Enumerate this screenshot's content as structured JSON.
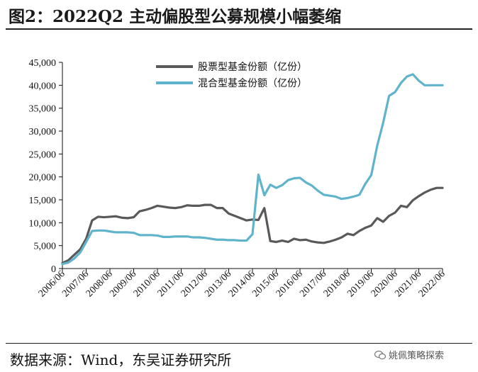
{
  "header": {
    "title": "图2：2022Q2 主动偏股型公募规模小幅萎缩"
  },
  "footer": {
    "source": "数据来源：Wind，东吴证券研究所",
    "watermark": "姚佩策略探索"
  },
  "chart_data": {
    "type": "line",
    "title": "图2：2022Q2 主动偏股型公募规模小幅萎缩",
    "xlabel": "",
    "ylabel": "",
    "ylim": [
      0,
      45000
    ],
    "yticks": [
      "0",
      "5,000",
      "10,000",
      "15,000",
      "20,000",
      "25,000",
      "30,000",
      "35,000",
      "40,000",
      "45,000"
    ],
    "xtick_labels": [
      "2006/06",
      "2007/06",
      "2008/06",
      "2009/06",
      "2010/06",
      "2011/06",
      "2012/06",
      "2013/06",
      "2014/06",
      "2015/06",
      "2016/06",
      "2017/06",
      "2018/06",
      "2019/06",
      "2020/06",
      "2021/06",
      "2022/06"
    ],
    "x": [
      "2006/06",
      "2006/09",
      "2006/12",
      "2007/03",
      "2007/06",
      "2007/09",
      "2007/12",
      "2008/03",
      "2008/06",
      "2008/09",
      "2008/12",
      "2009/03",
      "2009/06",
      "2009/09",
      "2009/12",
      "2010/03",
      "2010/06",
      "2010/09",
      "2010/12",
      "2011/03",
      "2011/06",
      "2011/09",
      "2011/12",
      "2012/03",
      "2012/06",
      "2012/09",
      "2012/12",
      "2013/03",
      "2013/06",
      "2013/09",
      "2013/12",
      "2014/03",
      "2014/06",
      "2014/09",
      "2014/12",
      "2015/03",
      "2015/06",
      "2015/09",
      "2015/12",
      "2016/03",
      "2016/06",
      "2016/09",
      "2016/12",
      "2017/03",
      "2017/06",
      "2017/09",
      "2017/12",
      "2018/03",
      "2018/06",
      "2018/09",
      "2018/12",
      "2019/03",
      "2019/06",
      "2019/09",
      "2019/12",
      "2020/03",
      "2020/06",
      "2020/09",
      "2020/12",
      "2021/03",
      "2021/06",
      "2021/09",
      "2021/12",
      "2022/03",
      "2022/06"
    ],
    "legend_position": "top",
    "grid": false,
    "series": [
      {
        "name": "股票型基金份额（亿份）",
        "color": "#595959",
        "values": [
          1200,
          1800,
          3000,
          4200,
          6500,
          10500,
          11300,
          11200,
          11300,
          11400,
          11100,
          11000,
          11200,
          12500,
          12800,
          13200,
          13700,
          13500,
          13300,
          13200,
          13400,
          13800,
          13700,
          13700,
          13900,
          13900,
          13200,
          13200,
          12000,
          11500,
          11000,
          10500,
          10700,
          10600,
          13200,
          6000,
          5800,
          6100,
          5800,
          6500,
          6200,
          6300,
          5900,
          5700,
          5600,
          5900,
          6300,
          6800,
          7600,
          7300,
          8200,
          8900,
          9400,
          11000,
          10200,
          11500,
          12200,
          13700,
          13400,
          14900,
          15800,
          16600,
          17200,
          17600,
          17600
        ]
      },
      {
        "name": "混合型基金份额（亿份）",
        "color": "#5fb4cc",
        "values": [
          1000,
          1300,
          2200,
          3500,
          5800,
          8200,
          8300,
          8300,
          8100,
          7900,
          7900,
          7900,
          7800,
          7300,
          7300,
          7300,
          7200,
          6900,
          6900,
          7000,
          7000,
          7000,
          6800,
          6800,
          6700,
          6500,
          6300,
          6300,
          6200,
          6200,
          6100,
          6100,
          7500,
          20500,
          16000,
          18300,
          17600,
          18200,
          19300,
          19700,
          19800,
          18800,
          18100,
          17000,
          16100,
          15900,
          15700,
          15200,
          15400,
          15700,
          16100,
          18500,
          20400,
          26800,
          31800,
          37700,
          38500,
          40500,
          41900,
          42400,
          41000,
          40000,
          40000,
          40000,
          40000
        ]
      }
    ]
  }
}
